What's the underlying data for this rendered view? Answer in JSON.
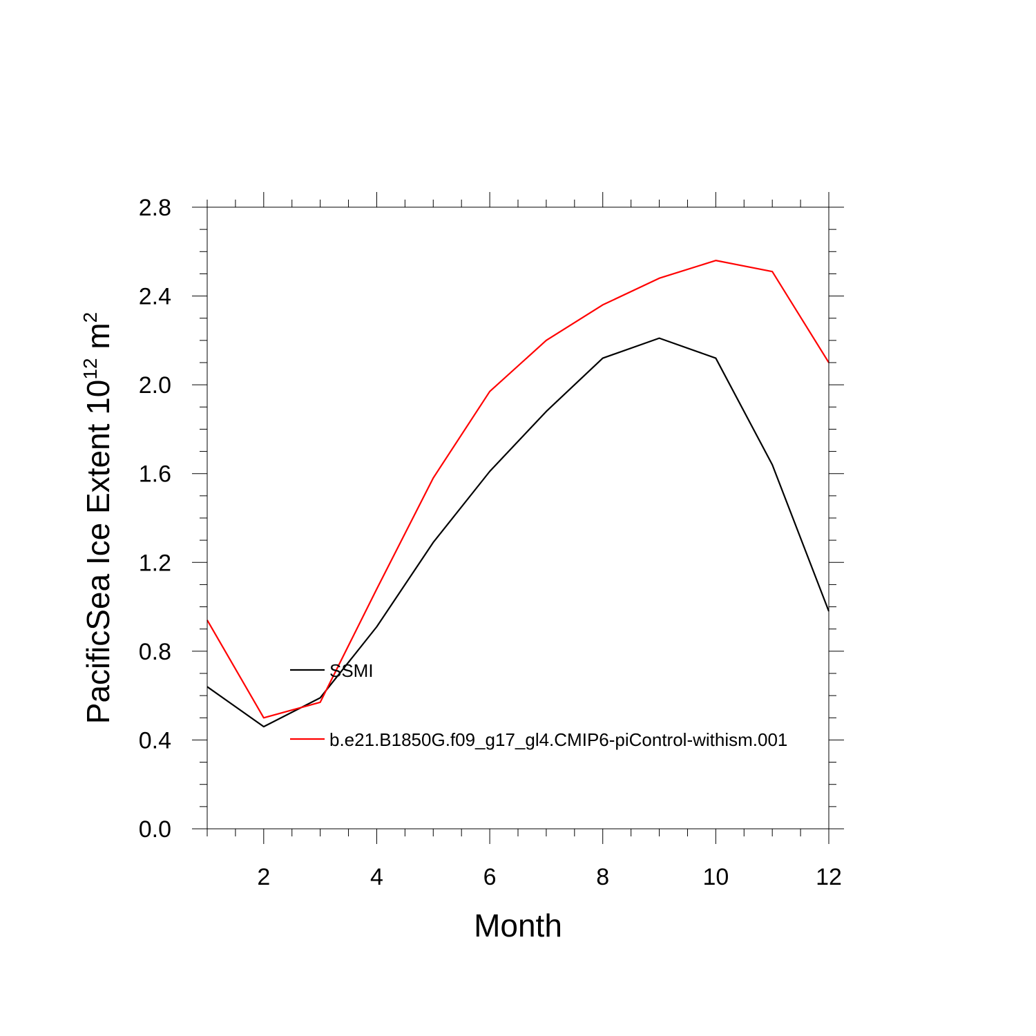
{
  "chart_data": {
    "type": "line",
    "title": "",
    "xlabel": "Month",
    "ylabel": {
      "main": "PacificSea Ice Extent 10",
      "exp": "12",
      "unit": " m",
      "unit_exp": "2"
    },
    "xlim": [
      1,
      12
    ],
    "ylim": [
      0.0,
      2.8
    ],
    "x_major_ticks": [
      2,
      4,
      6,
      8,
      10,
      12
    ],
    "x_tick_labels": [
      "2",
      "4",
      "6",
      "8",
      "10",
      "12"
    ],
    "y_major_ticks": [
      0.0,
      0.4,
      0.8,
      1.2,
      1.6,
      2.0,
      2.4,
      2.8
    ],
    "y_tick_labels": [
      "0.0",
      "0.4",
      "0.8",
      "1.2",
      "1.6",
      "2.0",
      "2.4",
      "2.8"
    ],
    "grid": false,
    "legend_position": "inside, left-center",
    "x": [
      1,
      2,
      3,
      4,
      5,
      6,
      7,
      8,
      9,
      10,
      11,
      12
    ],
    "series": [
      {
        "name": "SSMI",
        "color": "#000000",
        "values": [
          0.64,
          0.46,
          0.59,
          0.91,
          1.29,
          1.61,
          1.88,
          2.12,
          2.21,
          2.12,
          1.64,
          0.98
        ]
      },
      {
        "name": "b.e21.B1850G.f09_g17_gl4.CMIP6-piControl-withism.001",
        "color": "#ff0000",
        "values": [
          0.94,
          0.5,
          0.57,
          1.08,
          1.58,
          1.97,
          2.2,
          2.36,
          2.48,
          2.56,
          2.51,
          2.1
        ]
      }
    ]
  }
}
